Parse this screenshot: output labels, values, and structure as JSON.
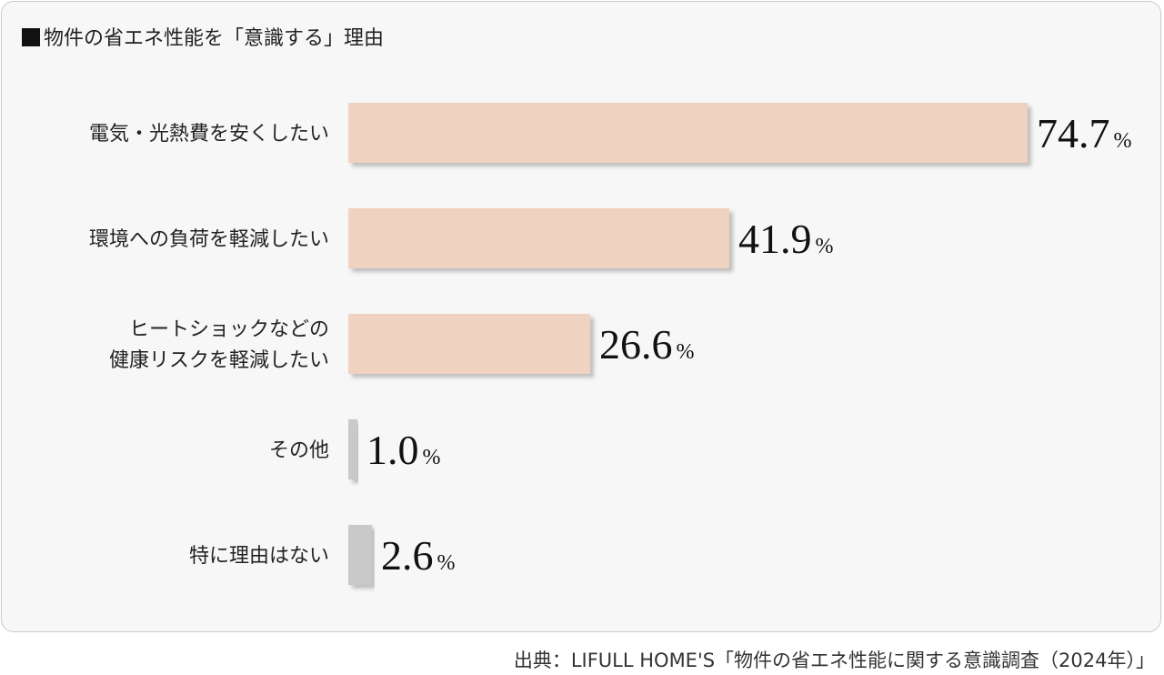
{
  "title": "物件の省エネ性能を「意識する」理由",
  "source": "出典：LIFULL HOME'S「物件の省エネ性能に関する意識調査（2024年）」",
  "colors": {
    "bar_main": "#efd2bf",
    "bar_other": "#c9c9c9",
    "shadow": "#b8b8b8",
    "panel_bg": "#f7f7f7"
  },
  "chart_data": {
    "type": "bar",
    "orientation": "horizontal",
    "value_suffix": "%",
    "categories": [
      [
        "電気・光熱費を安くしたい"
      ],
      [
        "環境への負荷を軽減したい"
      ],
      [
        "ヒートショックなどの",
        "健康リスクを軽減したい"
      ],
      [
        "その他"
      ],
      [
        "特に理由はない"
      ]
    ],
    "values": [
      74.7,
      41.9,
      26.6,
      1.0,
      2.6
    ],
    "value_labels": [
      "74.7",
      "41.9",
      "26.6",
      "1.0",
      "2.6"
    ],
    "bar_colors": [
      "#efd2bf",
      "#efd2bf",
      "#efd2bf",
      "#c9c9c9",
      "#c9c9c9"
    ],
    "xlim": [
      0,
      100
    ],
    "grid": false,
    "legend": "none"
  }
}
